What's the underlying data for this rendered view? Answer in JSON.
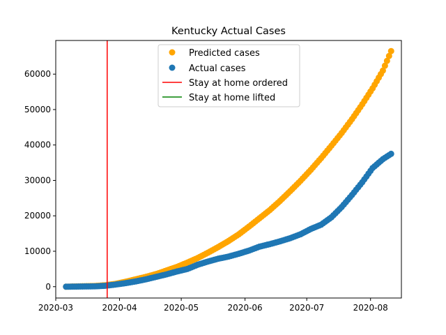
{
  "chart_data": {
    "type": "scatter",
    "title": "Kentucky Actual Cases",
    "xlabel": "",
    "ylabel": "",
    "x_axis": {
      "type": "date",
      "range": [
        "2020-03-01",
        "2020-08-16"
      ],
      "ticks": [
        "2020-03-01",
        "2020-04-01",
        "2020-05-01",
        "2020-06-01",
        "2020-07-01",
        "2020-08-01"
      ],
      "tick_labels": [
        "2020-03",
        "2020-04",
        "2020-05",
        "2020-06",
        "2020-07",
        "2020-08"
      ]
    },
    "y_axis": {
      "range": [
        -3200,
        69500
      ],
      "ticks": [
        0,
        10000,
        20000,
        30000,
        40000,
        50000,
        60000
      ],
      "tick_labels": [
        "0",
        "10000",
        "20000",
        "30000",
        "40000",
        "50000",
        "60000"
      ]
    },
    "grid": false,
    "legend_placement": "top-center",
    "series": [
      {
        "name": "Predicted cases",
        "kind": "points",
        "color": "#ffa500",
        "x": [
          "2020-03-06",
          "2020-03-13",
          "2020-03-20",
          "2020-03-25",
          "2020-03-30",
          "2020-04-04",
          "2020-04-09",
          "2020-04-14",
          "2020-04-19",
          "2020-04-24",
          "2020-04-29",
          "2020-05-04",
          "2020-05-09",
          "2020-05-14",
          "2020-05-19",
          "2020-05-24",
          "2020-05-29",
          "2020-06-03",
          "2020-06-08",
          "2020-06-13",
          "2020-06-18",
          "2020-06-23",
          "2020-06-28",
          "2020-07-03",
          "2020-07-08",
          "2020-07-13",
          "2020-07-18",
          "2020-07-23",
          "2020-07-28",
          "2020-08-02",
          "2020-08-07",
          "2020-08-11"
        ],
        "y": [
          0,
          100,
          200,
          400,
          800,
          1400,
          2100,
          2800,
          3600,
          4600,
          5600,
          6800,
          8100,
          9600,
          11200,
          12900,
          14800,
          17000,
          19300,
          21600,
          24200,
          27000,
          29900,
          33000,
          36300,
          39800,
          43400,
          47300,
          51500,
          56000,
          61000,
          66500
        ]
      },
      {
        "name": "Actual cases",
        "kind": "points",
        "color": "#1f77b4",
        "x": [
          "2020-03-06",
          "2020-03-13",
          "2020-03-20",
          "2020-03-25",
          "2020-03-30",
          "2020-04-04",
          "2020-04-09",
          "2020-04-14",
          "2020-04-19",
          "2020-04-24",
          "2020-04-29",
          "2020-05-04",
          "2020-05-09",
          "2020-05-14",
          "2020-05-19",
          "2020-05-24",
          "2020-05-29",
          "2020-06-03",
          "2020-06-08",
          "2020-06-13",
          "2020-06-18",
          "2020-06-23",
          "2020-06-28",
          "2020-07-03",
          "2020-07-08",
          "2020-07-13",
          "2020-07-18",
          "2020-07-23",
          "2020-07-28",
          "2020-08-02",
          "2020-08-07",
          "2020-08-11"
        ],
        "y": [
          0,
          50,
          100,
          250,
          600,
          1000,
          1500,
          2100,
          2800,
          3500,
          4300,
          5000,
          6200,
          7100,
          7900,
          8500,
          9300,
          10200,
          11300,
          12000,
          12800,
          13700,
          14800,
          16300,
          17500,
          19600,
          22500,
          25900,
          29500,
          33500,
          36000,
          37500
        ]
      },
      {
        "name": "Stay at home ordered",
        "kind": "vline",
        "color": "#ff0000",
        "x": "2020-03-26"
      },
      {
        "name": "Stay at home lifted",
        "kind": "vline",
        "color": "#008000",
        "x": null
      }
    ]
  }
}
